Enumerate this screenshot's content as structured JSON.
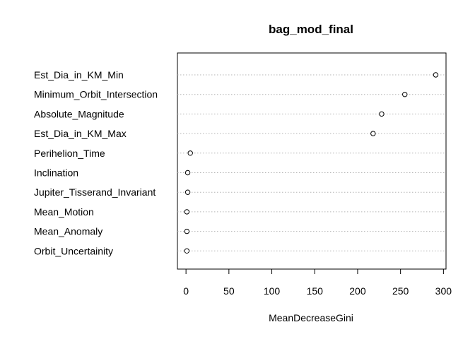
{
  "chart_data": {
    "type": "scatter",
    "variant": "dotchart",
    "title": "bag_mod_final",
    "xlabel": "MeanDecreaseGini",
    "ylabel": "",
    "xlim": [
      -10,
      303
    ],
    "xticks": [
      0,
      50,
      100,
      150,
      200,
      250,
      300
    ],
    "categories": [
      "Est_Dia_in_KM_Min",
      "Minimum_Orbit_Intersection",
      "Absolute_Magnitude",
      "Est_Dia_in_KM_Max",
      "Perihelion_Time",
      "Inclination",
      "Jupiter_Tisserand_Invariant",
      "Mean_Motion",
      "Mean_Anomaly",
      "Orbit_Uncertainity"
    ],
    "values": [
      291,
      255,
      228,
      218,
      5,
      2,
      2,
      1,
      1,
      1
    ],
    "grid": "dotted horizontal lines",
    "legend": "none"
  }
}
